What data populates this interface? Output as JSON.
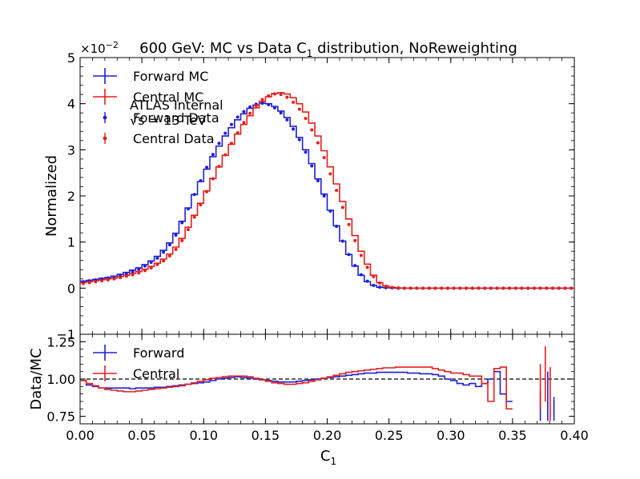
{
  "chart_data": {
    "type": "line",
    "title": "600 GeV: MC vs Data C₁ distribution, NoReweighting",
    "title_main": "600 GeV: MC vs Data C",
    "title_sub": "1",
    "title_tail": " distribution, NoReweighting",
    "xlabel_main": "C",
    "xlabel_sub": "1",
    "x_range": [
      0.0,
      0.4
    ],
    "x_ticks": [
      "0.00",
      "0.05",
      "0.10",
      "0.15",
      "0.20",
      "0.25",
      "0.30",
      "0.35",
      "0.40"
    ],
    "upper": {
      "ylabel": "Normalized",
      "y_range": [
        -1,
        5
      ],
      "y_ticks": [
        "−1",
        "0",
        "1",
        "2",
        "3",
        "4",
        "5"
      ],
      "scale_label_base": "×10",
      "scale_label_exp": "−2",
      "annotation_line1": "ATLAS Internal",
      "annotation_line2": "√s = 13 TeV",
      "legend_placement": "top-left",
      "legend": [
        "Forward MC",
        "Central MC",
        "Forward Data",
        "Central Data"
      ],
      "bin_width": 0.005,
      "series": [
        {
          "name": "Forward MC",
          "style": "step",
          "color": "#1f1fd6",
          "values": [
            0.15,
            0.17,
            0.19,
            0.21,
            0.23,
            0.26,
            0.3,
            0.34,
            0.39,
            0.44,
            0.51,
            0.59,
            0.69,
            0.82,
            0.98,
            1.19,
            1.45,
            1.74,
            2.03,
            2.31,
            2.58,
            2.85,
            3.08,
            3.3,
            3.48,
            3.65,
            3.78,
            3.9,
            3.97,
            4.01,
            4.0,
            3.94,
            3.84,
            3.7,
            3.51,
            3.27,
            3.0,
            2.7,
            2.37,
            2.04,
            1.69,
            1.35,
            1.02,
            0.73,
            0.48,
            0.28,
            0.14,
            0.06,
            0.02,
            0.01,
            0.005,
            0.0,
            0.0,
            0.0,
            0.0,
            0.0,
            0.0,
            0.0,
            0.0,
            0.0,
            0.0,
            0.0,
            0.0,
            0.0,
            0.0,
            0.0,
            0.0,
            0.0,
            0.0,
            0.0,
            0.0,
            0.0,
            0.0,
            0.0,
            0.0,
            0.0,
            0.0,
            0.0,
            0.0,
            0.0
          ]
        },
        {
          "name": "Central MC",
          "style": "step",
          "color": "#e51e1e",
          "values": [
            0.12,
            0.14,
            0.16,
            0.18,
            0.2,
            0.22,
            0.25,
            0.28,
            0.32,
            0.36,
            0.41,
            0.47,
            0.54,
            0.63,
            0.74,
            0.89,
            1.08,
            1.32,
            1.58,
            1.84,
            2.11,
            2.38,
            2.63,
            2.88,
            3.12,
            3.34,
            3.55,
            3.74,
            3.91,
            4.05,
            4.15,
            4.22,
            4.24,
            4.21,
            4.13,
            4.0,
            3.82,
            3.58,
            3.3,
            2.98,
            2.63,
            2.26,
            1.88,
            1.5,
            1.14,
            0.8,
            0.52,
            0.28,
            0.12,
            0.05,
            0.02,
            0.005,
            0.0,
            0.0,
            0.0,
            0.0,
            0.0,
            0.0,
            0.0,
            0.0,
            0.0,
            0.0,
            0.0,
            0.0,
            0.0,
            0.0,
            0.0,
            0.0,
            0.0,
            0.0,
            0.0,
            0.0,
            0.0,
            0.0,
            0.0,
            0.0,
            0.0,
            0.0,
            0.0,
            0.0
          ]
        },
        {
          "name": "Forward Data",
          "style": "points",
          "color": "#1f1fd6",
          "values": [
            0.14,
            0.16,
            0.18,
            0.2,
            0.22,
            0.24,
            0.28,
            0.32,
            0.36,
            0.41,
            0.48,
            0.56,
            0.65,
            0.78,
            0.94,
            1.15,
            1.42,
            1.72,
            2.03,
            2.33,
            2.62,
            2.9,
            3.14,
            3.36,
            3.55,
            3.71,
            3.83,
            3.93,
            3.99,
            4.01,
            3.98,
            3.91,
            3.8,
            3.65,
            3.45,
            3.22,
            2.95,
            2.65,
            2.33,
            2.0,
            1.67,
            1.34,
            1.02,
            0.73,
            0.49,
            0.29,
            0.15,
            0.06,
            0.02,
            0.01,
            0.005,
            0.0,
            0.0,
            0.0,
            0.0,
            0.0,
            0.0,
            0.0,
            0.0,
            0.0,
            0.0,
            0.0,
            0.0,
            0.0,
            0.0,
            0.0,
            0.0,
            0.0,
            0.0,
            0.0,
            0.0,
            0.0,
            0.0,
            0.0,
            0.0,
            0.0,
            0.0,
            0.0,
            0.0,
            0.0
          ]
        },
        {
          "name": "Central Data",
          "style": "points",
          "color": "#e51e1e",
          "values": [
            0.1,
            0.12,
            0.14,
            0.16,
            0.18,
            0.2,
            0.23,
            0.26,
            0.29,
            0.33,
            0.38,
            0.44,
            0.51,
            0.59,
            0.7,
            0.84,
            1.03,
            1.27,
            1.54,
            1.81,
            2.09,
            2.37,
            2.64,
            2.89,
            3.14,
            3.37,
            3.59,
            3.79,
            3.96,
            4.09,
            4.17,
            4.21,
            4.2,
            4.14,
            4.03,
            3.88,
            3.68,
            3.43,
            3.15,
            2.83,
            2.48,
            2.12,
            1.75,
            1.38,
            1.03,
            0.71,
            0.45,
            0.25,
            0.11,
            0.04,
            0.015,
            0.005,
            0.0,
            0.0,
            0.0,
            0.0,
            0.0,
            0.0,
            0.0,
            0.0,
            0.0,
            0.0,
            0.0,
            0.0,
            0.0,
            0.0,
            0.0,
            0.0,
            0.0,
            0.0,
            0.0,
            0.0,
            0.0,
            0.0,
            0.0,
            0.0,
            0.0,
            0.0,
            0.0,
            0.0
          ]
        }
      ]
    },
    "lower": {
      "ylabel": "Data/MC",
      "y_range": [
        0.7,
        1.3
      ],
      "y_ticks": [
        "0.75",
        "1.00",
        "1.25"
      ],
      "reference_line": 1.0,
      "legend_placement": "top-left",
      "legend": [
        "Forward",
        "Central"
      ],
      "bin_width": 0.005,
      "series": [
        {
          "name": "Forward",
          "style": "step",
          "color": "#1f1fd6",
          "values": [
            0.99,
            0.96,
            0.95,
            0.94,
            0.94,
            0.94,
            0.94,
            0.94,
            0.935,
            0.94,
            0.94,
            0.94,
            0.945,
            0.945,
            0.95,
            0.955,
            0.96,
            0.965,
            0.97,
            0.975,
            0.98,
            0.99,
            1.0,
            1.005,
            1.01,
            1.015,
            1.01,
            1.005,
            1.0,
            0.995,
            0.99,
            0.985,
            0.98,
            0.98,
            0.98,
            0.985,
            0.99,
            0.995,
            1.0,
            1.005,
            1.01,
            1.015,
            1.02,
            1.025,
            1.03,
            1.035,
            1.04,
            1.04,
            1.045,
            1.045,
            1.045,
            1.045,
            1.045,
            1.04,
            1.04,
            1.035,
            1.035,
            1.03,
            1.02,
            1.0,
            0.99,
            0.97,
            0.96,
            0.97,
            0.95,
            0.97,
            1.0,
            1.05,
            0.9,
            0.85,
            0.85,
            0.85,
            0.85,
            0.85,
            0.85,
            0.85,
            0.85,
            0.85,
            0.85,
            0.85
          ]
        },
        {
          "name": "Central",
          "style": "step",
          "color": "#e51e1e",
          "values": [
            0.99,
            0.97,
            0.955,
            0.94,
            0.93,
            0.925,
            0.92,
            0.915,
            0.915,
            0.92,
            0.925,
            0.93,
            0.935,
            0.94,
            0.945,
            0.95,
            0.955,
            0.965,
            0.975,
            0.985,
            0.995,
            1.005,
            1.01,
            1.015,
            1.02,
            1.02,
            1.02,
            1.015,
            1.005,
            0.995,
            0.985,
            0.975,
            0.97,
            0.965,
            0.965,
            0.97,
            0.975,
            0.985,
            0.995,
            1.005,
            1.015,
            1.025,
            1.035,
            1.045,
            1.05,
            1.055,
            1.06,
            1.065,
            1.07,
            1.075,
            1.075,
            1.08,
            1.08,
            1.08,
            1.08,
            1.08,
            1.08,
            1.07,
            1.06,
            1.05,
            1.04,
            1.04,
            1.03,
            1.02,
            1.02,
            0.97,
            0.85,
            1.07,
            1.08,
            0.8,
            0.8,
            0.8,
            0.8,
            0.8,
            0.8,
            0.8,
            0.8,
            0.8,
            0.8,
            0.8
          ]
        }
      ]
    }
  }
}
